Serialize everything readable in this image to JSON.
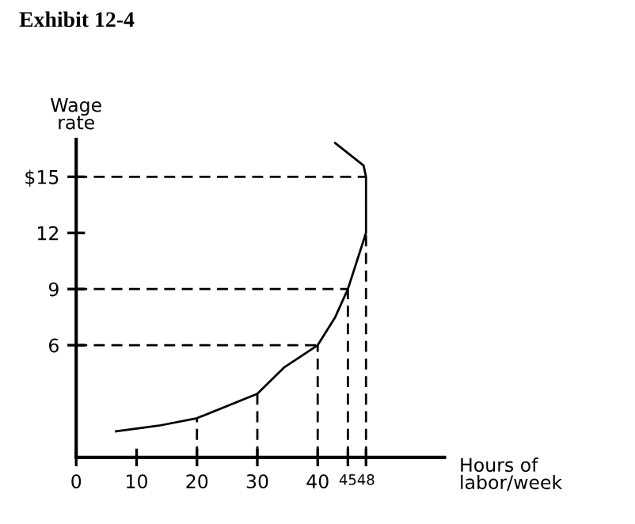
{
  "chart_data": {
    "type": "line",
    "title": "Exhibit 12-4",
    "xlabel": "Hours of\nlabor/week",
    "ylabel": "Wage\nrate",
    "series": [
      {
        "color": "#000000",
        "x": [
          6.6,
          13.7,
          20,
          30,
          34.4,
          40,
          42.9,
          45,
          48,
          48,
          47.6,
          42.9
        ],
        "values": [
          1.4,
          1.7,
          2.1,
          3.4,
          4.8,
          6,
          7.5,
          9,
          12,
          15,
          15.6,
          16.8
        ]
      }
    ],
    "xlim": [
      0,
      61
    ],
    "ylim": [
      0,
      17
    ],
    "xticks": [
      0,
      10,
      20,
      30,
      40,
      45,
      48
    ],
    "yticks": [
      6,
      9,
      12,
      {
        "value": 15,
        "label": "$15"
      }
    ],
    "grid": false,
    "marker": "none",
    "line_style": "solid",
    "ref_lines": [
      {
        "axis": "y",
        "value": 6,
        "color": "#000000",
        "line_style": "dashed"
      },
      {
        "axis": "y",
        "value": 9,
        "color": "#000000",
        "line_style": "dashed"
      },
      {
        "axis": "y",
        "value": 15,
        "color": "#000000",
        "line_style": "dashed"
      },
      {
        "axis": "x",
        "value": 20,
        "color": "#000000",
        "line_style": "dashed"
      },
      {
        "axis": "x",
        "value": 30,
        "color": "#000000",
        "line_style": "dashed"
      },
      {
        "axis": "x",
        "value": 40,
        "color": "#000000",
        "line_style": "dashed"
      },
      {
        "axis": "x",
        "value": 45,
        "color": "#000000",
        "line_style": "dashed"
      },
      {
        "axis": "x",
        "value": 48,
        "color": "#000000",
        "line_style": "dashed"
      }
    ]
  }
}
